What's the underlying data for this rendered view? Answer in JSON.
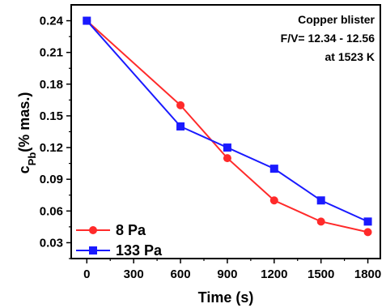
{
  "chart_data": {
    "type": "line",
    "x_values": [
      0,
      600,
      900,
      1200,
      1500,
      1800
    ],
    "x_ticks": [
      0,
      300,
      600,
      900,
      1200,
      1500,
      1800
    ],
    "y_ticks": [
      0.03,
      0.06,
      0.09,
      0.12,
      0.15,
      0.18,
      0.21,
      0.24
    ],
    "x_tick_labels": [
      "0",
      "300",
      "600",
      "900",
      "1200",
      "1500",
      "1800"
    ],
    "y_tick_labels": [
      "0.03",
      "0.06",
      "0.09",
      "0.12",
      "0.15",
      "0.18",
      "0.21",
      "0.24"
    ],
    "xlim": [
      -100,
      1880
    ],
    "ylim": [
      0.015,
      0.255
    ],
    "xlabel": "Time (s)",
    "ylabel": {
      "main": "c",
      "sub": "Pb",
      "rest": "(% mas.)"
    },
    "annotation": [
      "Copper blister",
      "F/V= 12.34 - 12.56",
      "at 1523 K"
    ],
    "legend_position": "bottom-left",
    "grid": false,
    "series": [
      {
        "name": "8 Pa",
        "color": "#ff2a2a",
        "marker": "circle",
        "values": [
          0.24,
          0.16,
          0.11,
          0.07,
          0.05,
          0.04
        ]
      },
      {
        "name": "133 Pa",
        "color": "#1a1aff",
        "marker": "square",
        "values": [
          0.24,
          0.14,
          0.12,
          0.1,
          0.07,
          0.05
        ]
      }
    ]
  }
}
